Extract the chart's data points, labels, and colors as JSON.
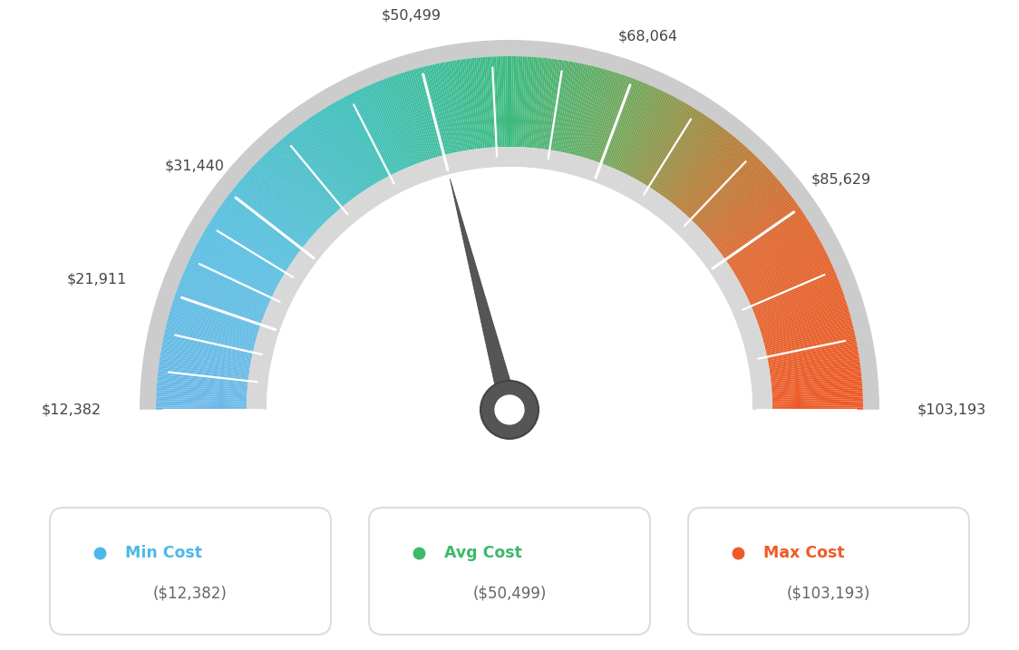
{
  "min_val": 12382,
  "avg_val": 50499,
  "max_val": 103193,
  "tick_labels": [
    "$12,382",
    "$21,911",
    "$31,440",
    "$50,499",
    "$68,064",
    "$85,629",
    "$103,193"
  ],
  "tick_values": [
    12382,
    21911,
    31440,
    50499,
    68064,
    85629,
    103193
  ],
  "legend_items": [
    {
      "label": "Min Cost",
      "value": "($12,382)",
      "color": "#4db8e8"
    },
    {
      "label": "Avg Cost",
      "value": "($50,499)",
      "color": "#3cb96a"
    },
    {
      "label": "Max Cost",
      "value": "($103,193)",
      "color": "#f05a28"
    }
  ],
  "needle_value": 50499,
  "background_color": "#ffffff",
  "color_stops": [
    [
      0.0,
      [
        0.42,
        0.72,
        0.91
      ]
    ],
    [
      0.18,
      [
        0.35,
        0.75,
        0.88
      ]
    ],
    [
      0.35,
      [
        0.25,
        0.75,
        0.72
      ]
    ],
    [
      0.5,
      [
        0.24,
        0.73,
        0.5
      ]
    ],
    [
      0.62,
      [
        0.45,
        0.65,
        0.35
      ]
    ],
    [
      0.72,
      [
        0.7,
        0.5,
        0.22
      ]
    ],
    [
      0.82,
      [
        0.88,
        0.4,
        0.18
      ]
    ],
    [
      1.0,
      [
        0.93,
        0.35,
        0.15
      ]
    ]
  ]
}
